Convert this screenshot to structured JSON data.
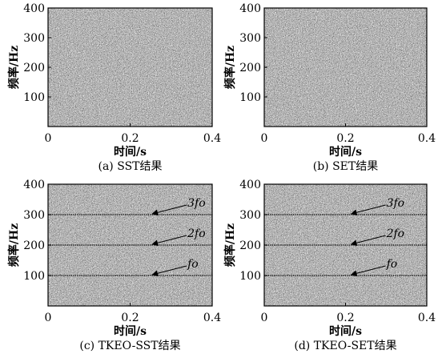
{
  "chart_data": [
    {
      "type": "heatmap",
      "caption": "(a) SST结果",
      "xlabel": "时间/s",
      "ylabel": "频率/Hz",
      "xlim": [
        0,
        0.4
      ],
      "ylim": [
        0,
        400
      ],
      "xticks": [
        0,
        0.2,
        0.4
      ],
      "yticks": [
        100,
        200,
        300,
        400
      ],
      "xtick_labels": [
        "0",
        "0.2",
        "0.4"
      ],
      "ytick_labels": [
        "100",
        "200",
        "300",
        "400"
      ],
      "texture": "dense noise",
      "harmonics": []
    },
    {
      "type": "heatmap",
      "caption": "(b) SET结果",
      "xlabel": "时间/s",
      "ylabel": "频率/Hz",
      "xlim": [
        0,
        0.4
      ],
      "ylim": [
        0,
        400
      ],
      "xticks": [
        0,
        0.2,
        0.4
      ],
      "yticks": [
        100,
        200,
        300,
        400
      ],
      "xtick_labels": [
        "0",
        "0.2",
        "0.4"
      ],
      "ytick_labels": [
        "100",
        "200",
        "300",
        "400"
      ],
      "texture": "dense noise",
      "harmonics": []
    },
    {
      "type": "heatmap",
      "caption": "(c) TKEO-SST结果",
      "xlabel": "时间/s",
      "ylabel": "频率/Hz",
      "xlim": [
        0,
        0.4
      ],
      "ylim": [
        0,
        400
      ],
      "xticks": [
        0,
        0.2,
        0.4
      ],
      "yticks": [
        100,
        200,
        300,
        400
      ],
      "xtick_labels": [
        "0",
        "0.2",
        "0.4"
      ],
      "ytick_labels": [
        "100",
        "200",
        "300",
        "400"
      ],
      "texture": "dense noise",
      "harmonics": [
        {
          "label": "3fo",
          "frequency": 300,
          "arrow_time": 0.25
        },
        {
          "label": "2fo",
          "frequency": 200,
          "arrow_time": 0.25
        },
        {
          "label": "fo",
          "frequency": 100,
          "arrow_time": 0.25
        }
      ]
    },
    {
      "type": "heatmap",
      "caption": "(d) TKEO-SET结果",
      "xlabel": "时间/s",
      "ylabel": "频率/Hz",
      "xlim": [
        0,
        0.4
      ],
      "ylim": [
        0,
        400
      ],
      "xticks": [
        0,
        0.2,
        0.4
      ],
      "yticks": [
        100,
        200,
        300,
        400
      ],
      "xtick_labels": [
        "0",
        "0.2",
        "0.4"
      ],
      "ytick_labels": [
        "100",
        "200",
        "300",
        "400"
      ],
      "texture": "dense noise",
      "harmonics": [
        {
          "label": "3fo",
          "frequency": 300,
          "arrow_time": 0.21
        },
        {
          "label": "2fo",
          "frequency": 200,
          "arrow_time": 0.21
        },
        {
          "label": "fo",
          "frequency": 100,
          "arrow_time": 0.21
        }
      ]
    }
  ],
  "colors": {
    "noise_dark": "#3a3a3a",
    "noise_light": "#c4c4c4",
    "line": "#111111",
    "text": "#000000"
  }
}
